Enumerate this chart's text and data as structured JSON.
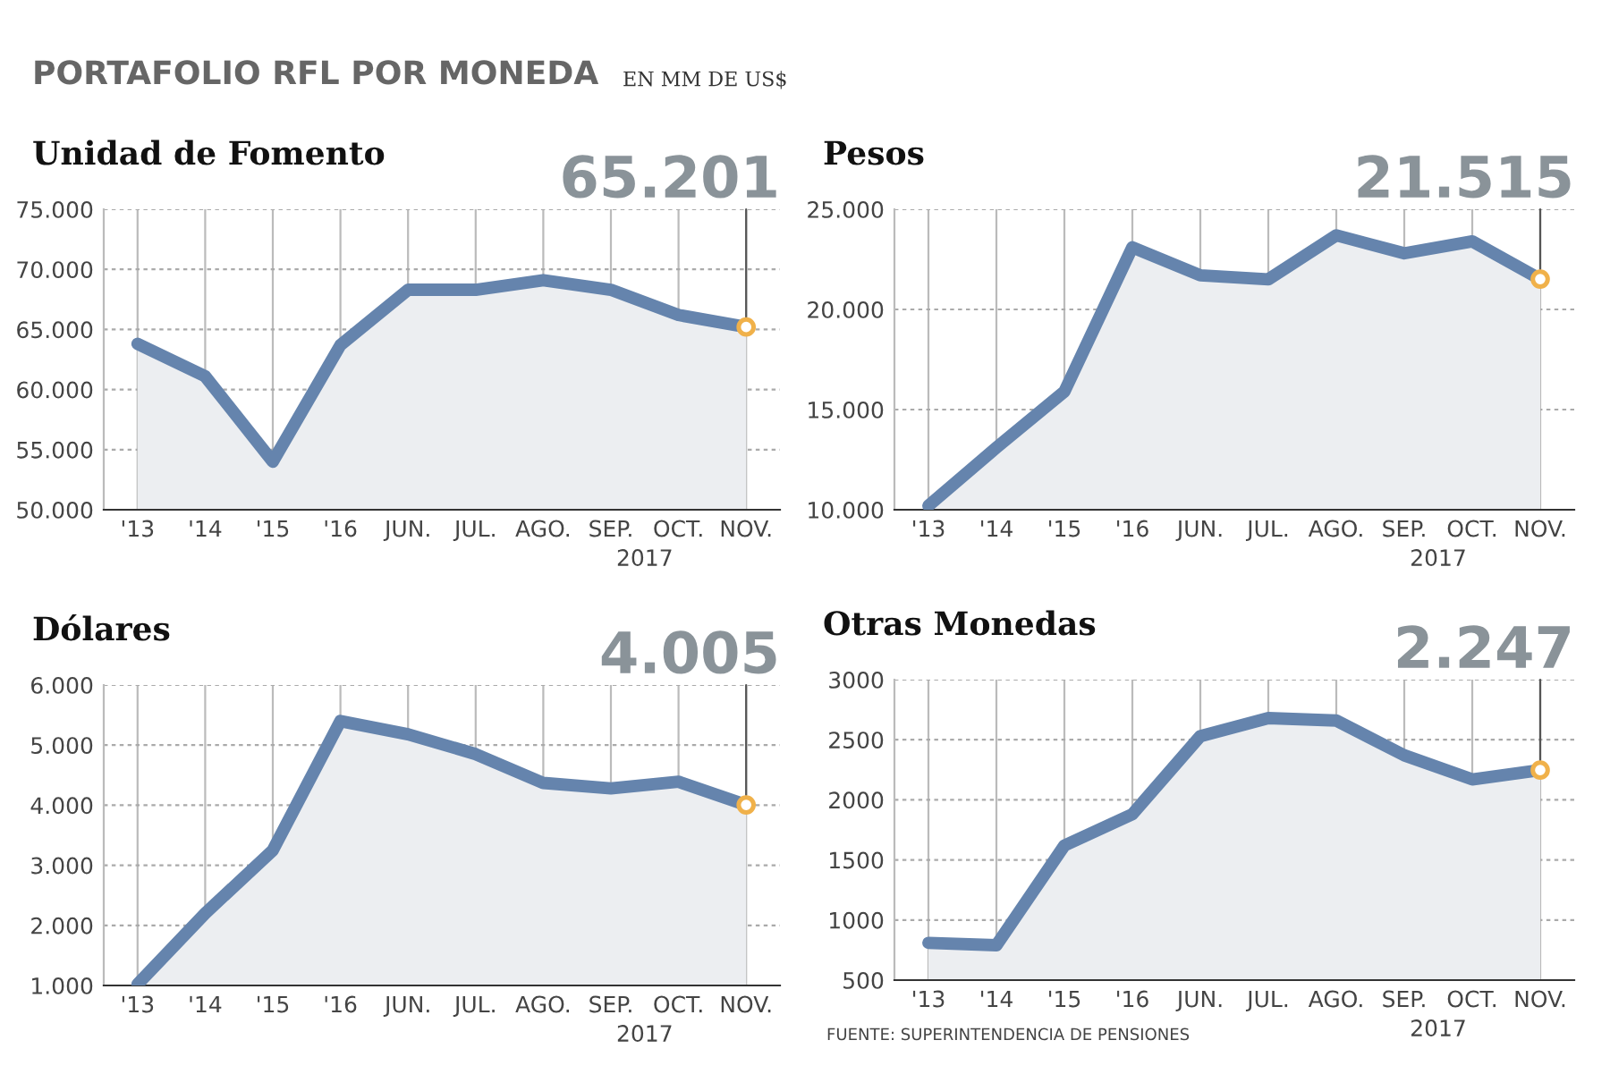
{
  "chart_data": [
    {
      "type": "area",
      "title": "Unidad de Fomento",
      "annotations": [
        "PORTAFOLIO RFL POR MONEDA",
        "EN MM DE US$",
        "2017"
      ],
      "categories": [
        "'13",
        "'14",
        "'15",
        "'16",
        "JUN.",
        "JUL.",
        "AGO.",
        "SEP.",
        "OCT.",
        "NOV."
      ],
      "series": [
        {
          "color": "#6584ad",
          "values": [
            63800,
            61100,
            54000,
            63700,
            68300,
            68300,
            69100,
            68300,
            66200,
            65201
          ],
          "value_labels": [
            null,
            null,
            null,
            null,
            null,
            null,
            null,
            null,
            null,
            "65.201"
          ]
        }
      ],
      "ylim": [
        50000,
        75000
      ],
      "yticks": [
        {
          "value": 50000,
          "label": "50.000"
        },
        {
          "value": 55000,
          "label": "55.000"
        },
        {
          "value": 60000,
          "label": "60.000"
        },
        {
          "value": 65000,
          "label": "65.000"
        },
        {
          "value": 70000,
          "label": "70.000"
        },
        {
          "value": 75000,
          "label": "75.000"
        }
      ],
      "grid": true
    },
    {
      "type": "area",
      "title": "Pesos",
      "annotations": [
        "2017"
      ],
      "categories": [
        "'13",
        "'14",
        "'15",
        "'16",
        "JUN.",
        "JUL.",
        "AGO.",
        "SEP.",
        "OCT.",
        "NOV."
      ],
      "series": [
        {
          "color": "#6584ad",
          "values": [
            10200,
            13100,
            15900,
            23100,
            21700,
            21500,
            23700,
            22800,
            23400,
            21515
          ],
          "value_labels": [
            null,
            null,
            null,
            null,
            null,
            null,
            null,
            null,
            null,
            "21.515"
          ]
        }
      ],
      "ylim": [
        10000,
        25000
      ],
      "yticks": [
        {
          "value": 10000,
          "label": "10.000"
        },
        {
          "value": 15000,
          "label": "15.000"
        },
        {
          "value": 20000,
          "label": "20.000"
        },
        {
          "value": 25000,
          "label": "25.000"
        }
      ],
      "grid": true
    },
    {
      "type": "area",
      "title": "Dólares",
      "annotations": [
        "2017"
      ],
      "categories": [
        "'13",
        "'14",
        "'15",
        "'16",
        "JUN.",
        "JUL.",
        "AGO.",
        "SEP.",
        "OCT.",
        "NOV."
      ],
      "series": [
        {
          "color": "#6584ad",
          "values": [
            1020,
            2200,
            3250,
            5400,
            5180,
            4850,
            4370,
            4280,
            4390,
            4005
          ],
          "value_labels": [
            null,
            null,
            null,
            null,
            null,
            null,
            null,
            null,
            null,
            "4.005"
          ]
        }
      ],
      "ylim": [
        1000,
        6000
      ],
      "yticks": [
        {
          "value": 1000,
          "label": "1.000"
        },
        {
          "value": 2000,
          "label": "2.000"
        },
        {
          "value": 3000,
          "label": "3.000"
        },
        {
          "value": 4000,
          "label": "4.000"
        },
        {
          "value": 5000,
          "label": "5.000"
        },
        {
          "value": 6000,
          "label": "6.000"
        }
      ],
      "grid": true
    },
    {
      "type": "area",
      "title": "Otras Monedas",
      "annotations": [
        "2017",
        "FUENTE: SUPERINTENDENCIA DE PENSIONES"
      ],
      "categories": [
        "'13",
        "'14",
        "'15",
        "'16",
        "JUN.",
        "JUL.",
        "AGO.",
        "SEP.",
        "OCT.",
        "NOV."
      ],
      "series": [
        {
          "color": "#6584ad",
          "values": [
            810,
            790,
            1620,
            1880,
            2530,
            2680,
            2660,
            2370,
            2170,
            2247
          ],
          "value_labels": [
            null,
            null,
            null,
            null,
            null,
            null,
            null,
            null,
            null,
            "2.247"
          ]
        }
      ],
      "ylim": [
        500,
        3000
      ],
      "yticks": [
        500,
        1000,
        1500,
        2000,
        2500,
        3000
      ],
      "grid": true
    }
  ]
}
